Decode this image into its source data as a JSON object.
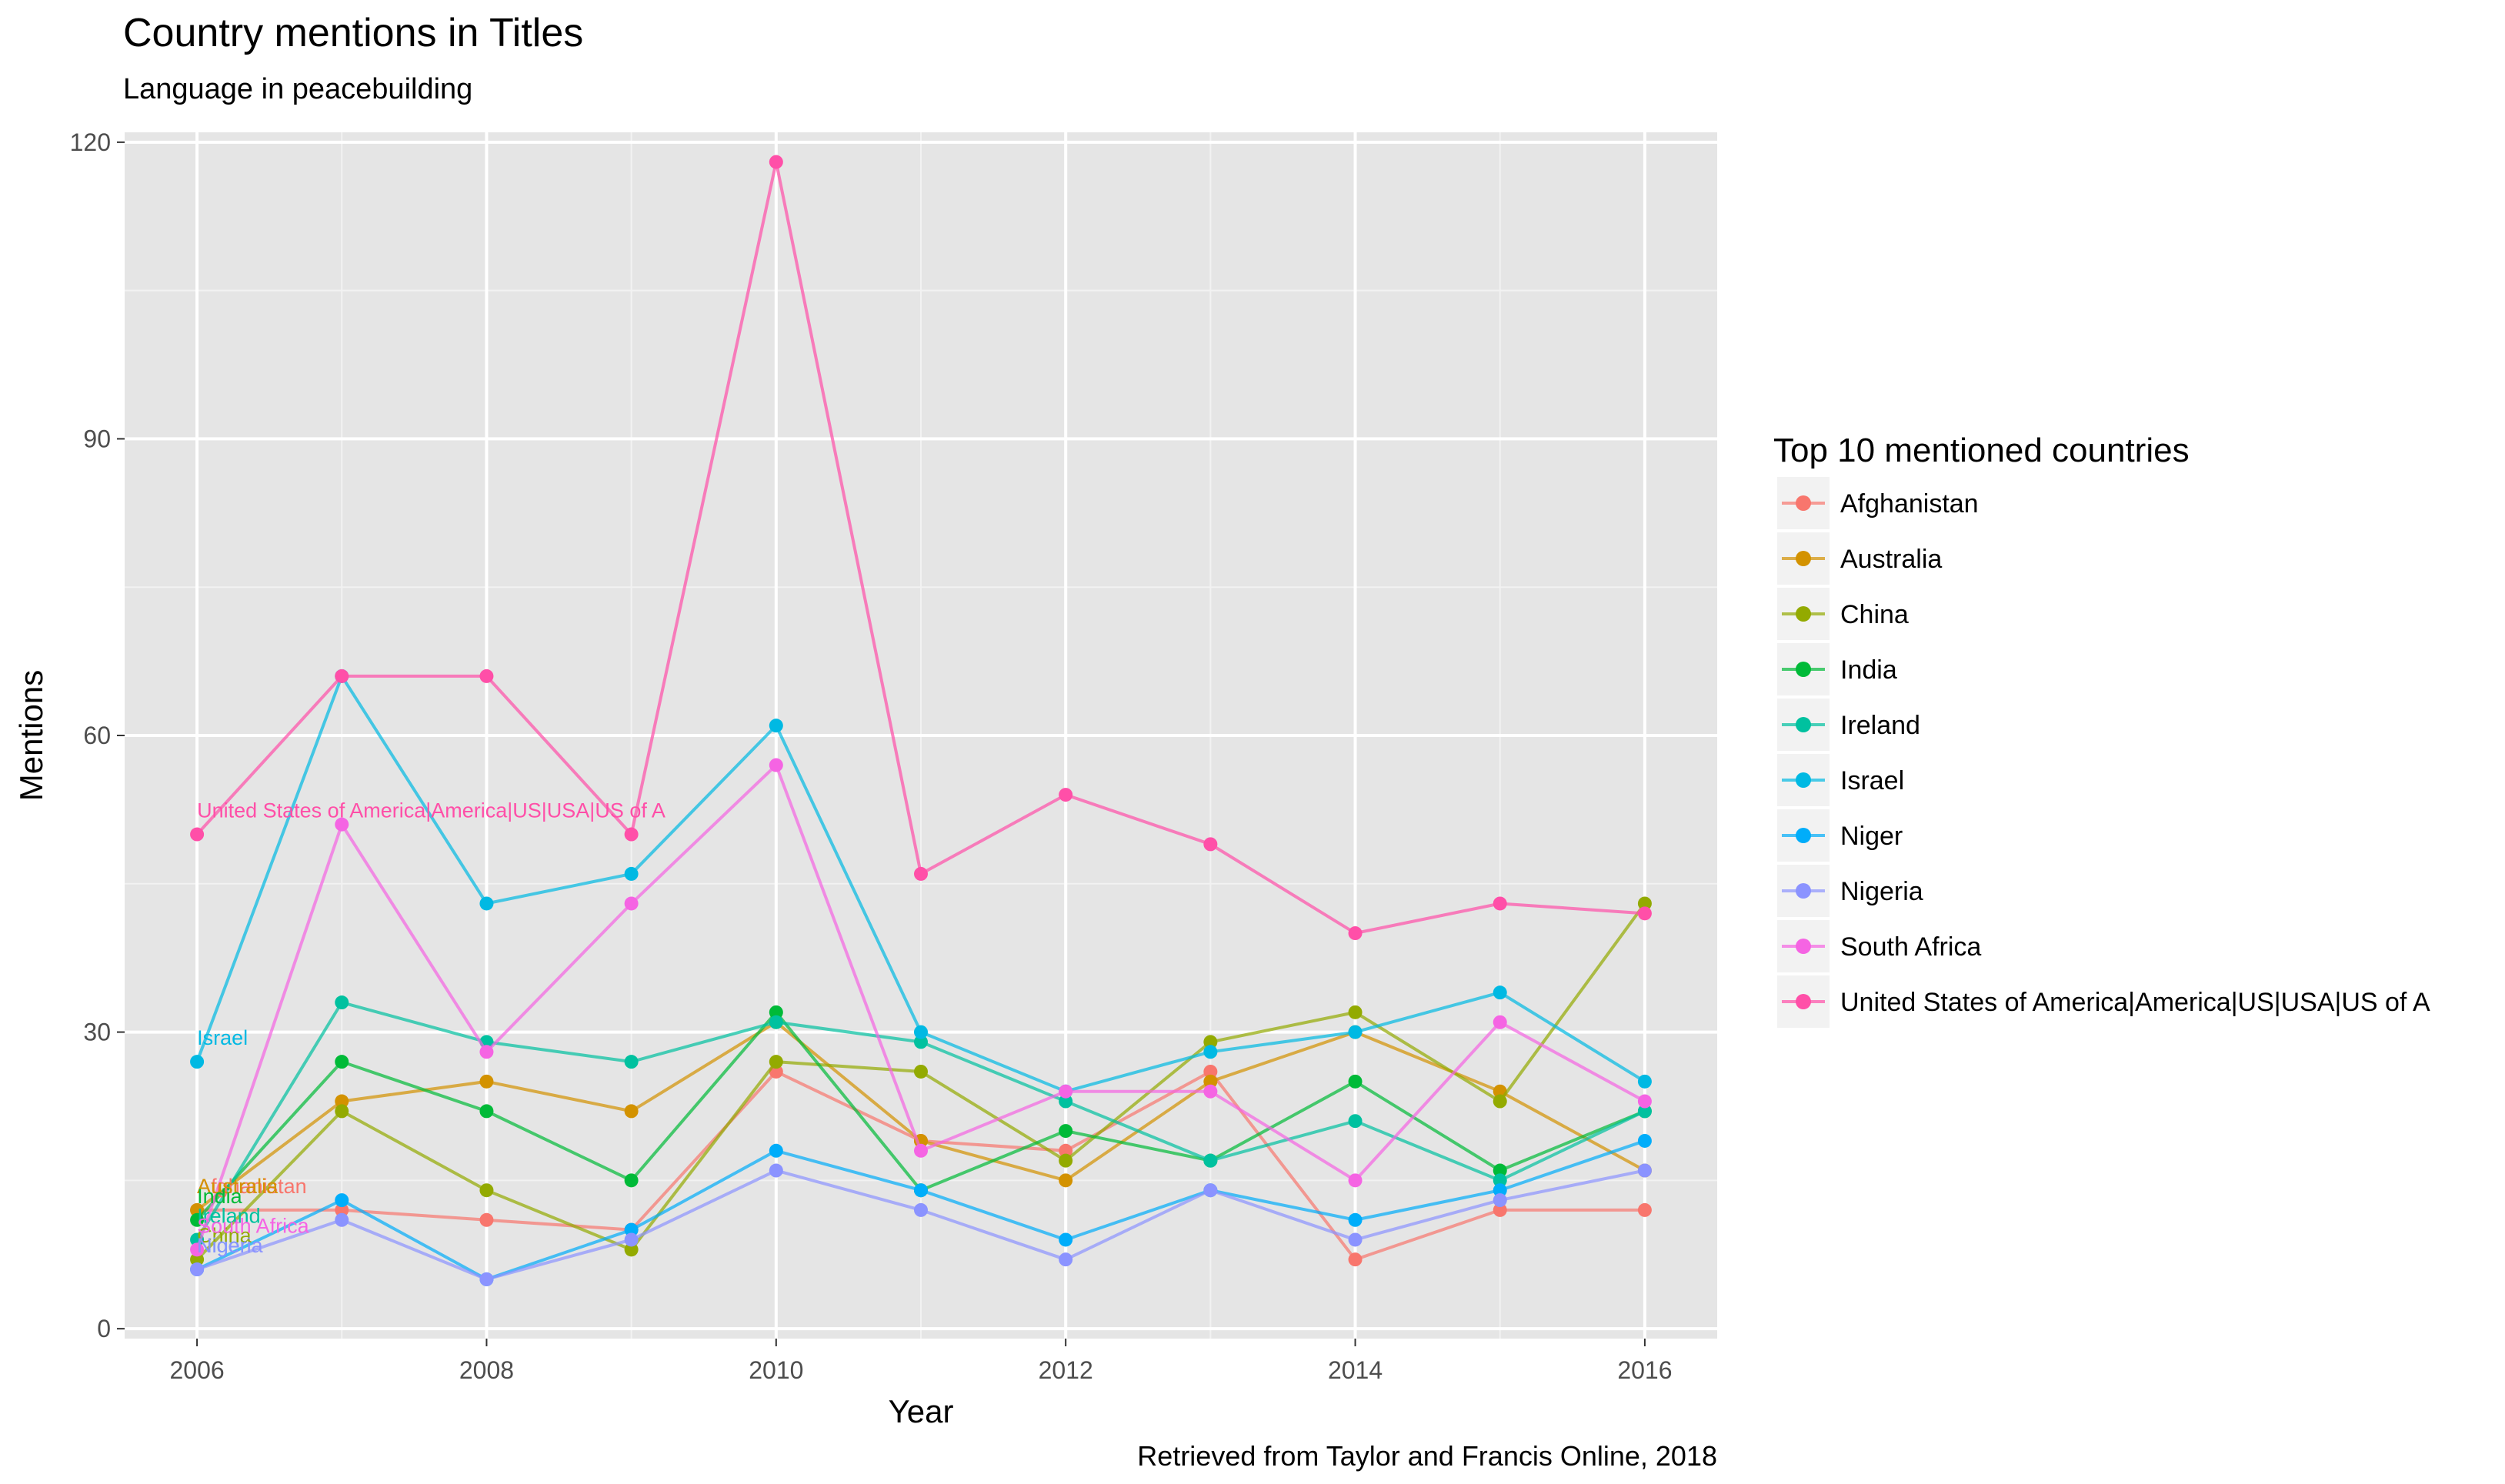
{
  "chart_data": {
    "type": "line",
    "title": "Country mentions in Titles",
    "subtitle": "Language in peacebuilding",
    "xlabel": "Year",
    "ylabel": "Mentions",
    "caption": "Retrieved from Taylor and Francis Online, 2018",
    "x": [
      2006,
      2007,
      2008,
      2009,
      2010,
      2011,
      2012,
      2013,
      2014,
      2015,
      2016
    ],
    "xticks": [
      "2006",
      "2008",
      "2010",
      "2012",
      "2014",
      "2016"
    ],
    "yticks": [
      "0",
      "30",
      "60",
      "90",
      "120"
    ],
    "xlim": [
      2005.5,
      2016.5
    ],
    "ylim": [
      -1,
      121
    ],
    "grid": true,
    "legend": {
      "title": "Top 10 mentioned countries",
      "position": "right"
    },
    "series": [
      {
        "name": "Afghanistan",
        "color": "#F8766D",
        "label": "Afghanistan",
        "values": [
          12,
          12,
          11,
          10,
          26,
          19,
          18,
          26,
          7,
          12,
          12
        ]
      },
      {
        "name": "Australia",
        "color": "#D39200",
        "label": "Australia",
        "values": [
          12,
          23,
          25,
          22,
          31,
          19,
          15,
          25,
          30,
          24,
          16
        ]
      },
      {
        "name": "China",
        "color": "#93AA00",
        "label": "China",
        "values": [
          7,
          22,
          14,
          8,
          27,
          26,
          17,
          29,
          32,
          23,
          43
        ]
      },
      {
        "name": "India",
        "color": "#00BA38",
        "label": "India",
        "values": [
          11,
          27,
          22,
          15,
          32,
          14,
          20,
          17,
          25,
          16,
          22
        ]
      },
      {
        "name": "Ireland",
        "color": "#00C19F",
        "label": "Ireland",
        "values": [
          9,
          33,
          29,
          27,
          31,
          29,
          23,
          17,
          21,
          15,
          22
        ]
      },
      {
        "name": "Israel",
        "color": "#00B9E3",
        "label": "Israel",
        "values": [
          27,
          66,
          43,
          46,
          61,
          30,
          24,
          28,
          30,
          34,
          25
        ]
      },
      {
        "name": "Niger",
        "color": "#00ADFA",
        "label": "Niger",
        "values": [
          6,
          13,
          5,
          10,
          18,
          14,
          9,
          14,
          11,
          14,
          19
        ]
      },
      {
        "name": "Nigeria",
        "color": "#8B93FF",
        "label": "Nigeria",
        "values": [
          6,
          11,
          5,
          9,
          16,
          12,
          7,
          14,
          9,
          13,
          16
        ]
      },
      {
        "name": "South Africa",
        "color": "#F564E3",
        "label": "South Africa",
        "values": [
          8,
          51,
          28,
          43,
          57,
          18,
          24,
          24,
          15,
          31,
          23
        ]
      },
      {
        "name": "United States of America|America|US|USA|US of A",
        "color": "#FF4FA8",
        "label": "United States of America|America|US|USA|US of A",
        "values": [
          50,
          66,
          66,
          50,
          118,
          46,
          54,
          49,
          40,
          43,
          42
        ]
      }
    ]
  }
}
